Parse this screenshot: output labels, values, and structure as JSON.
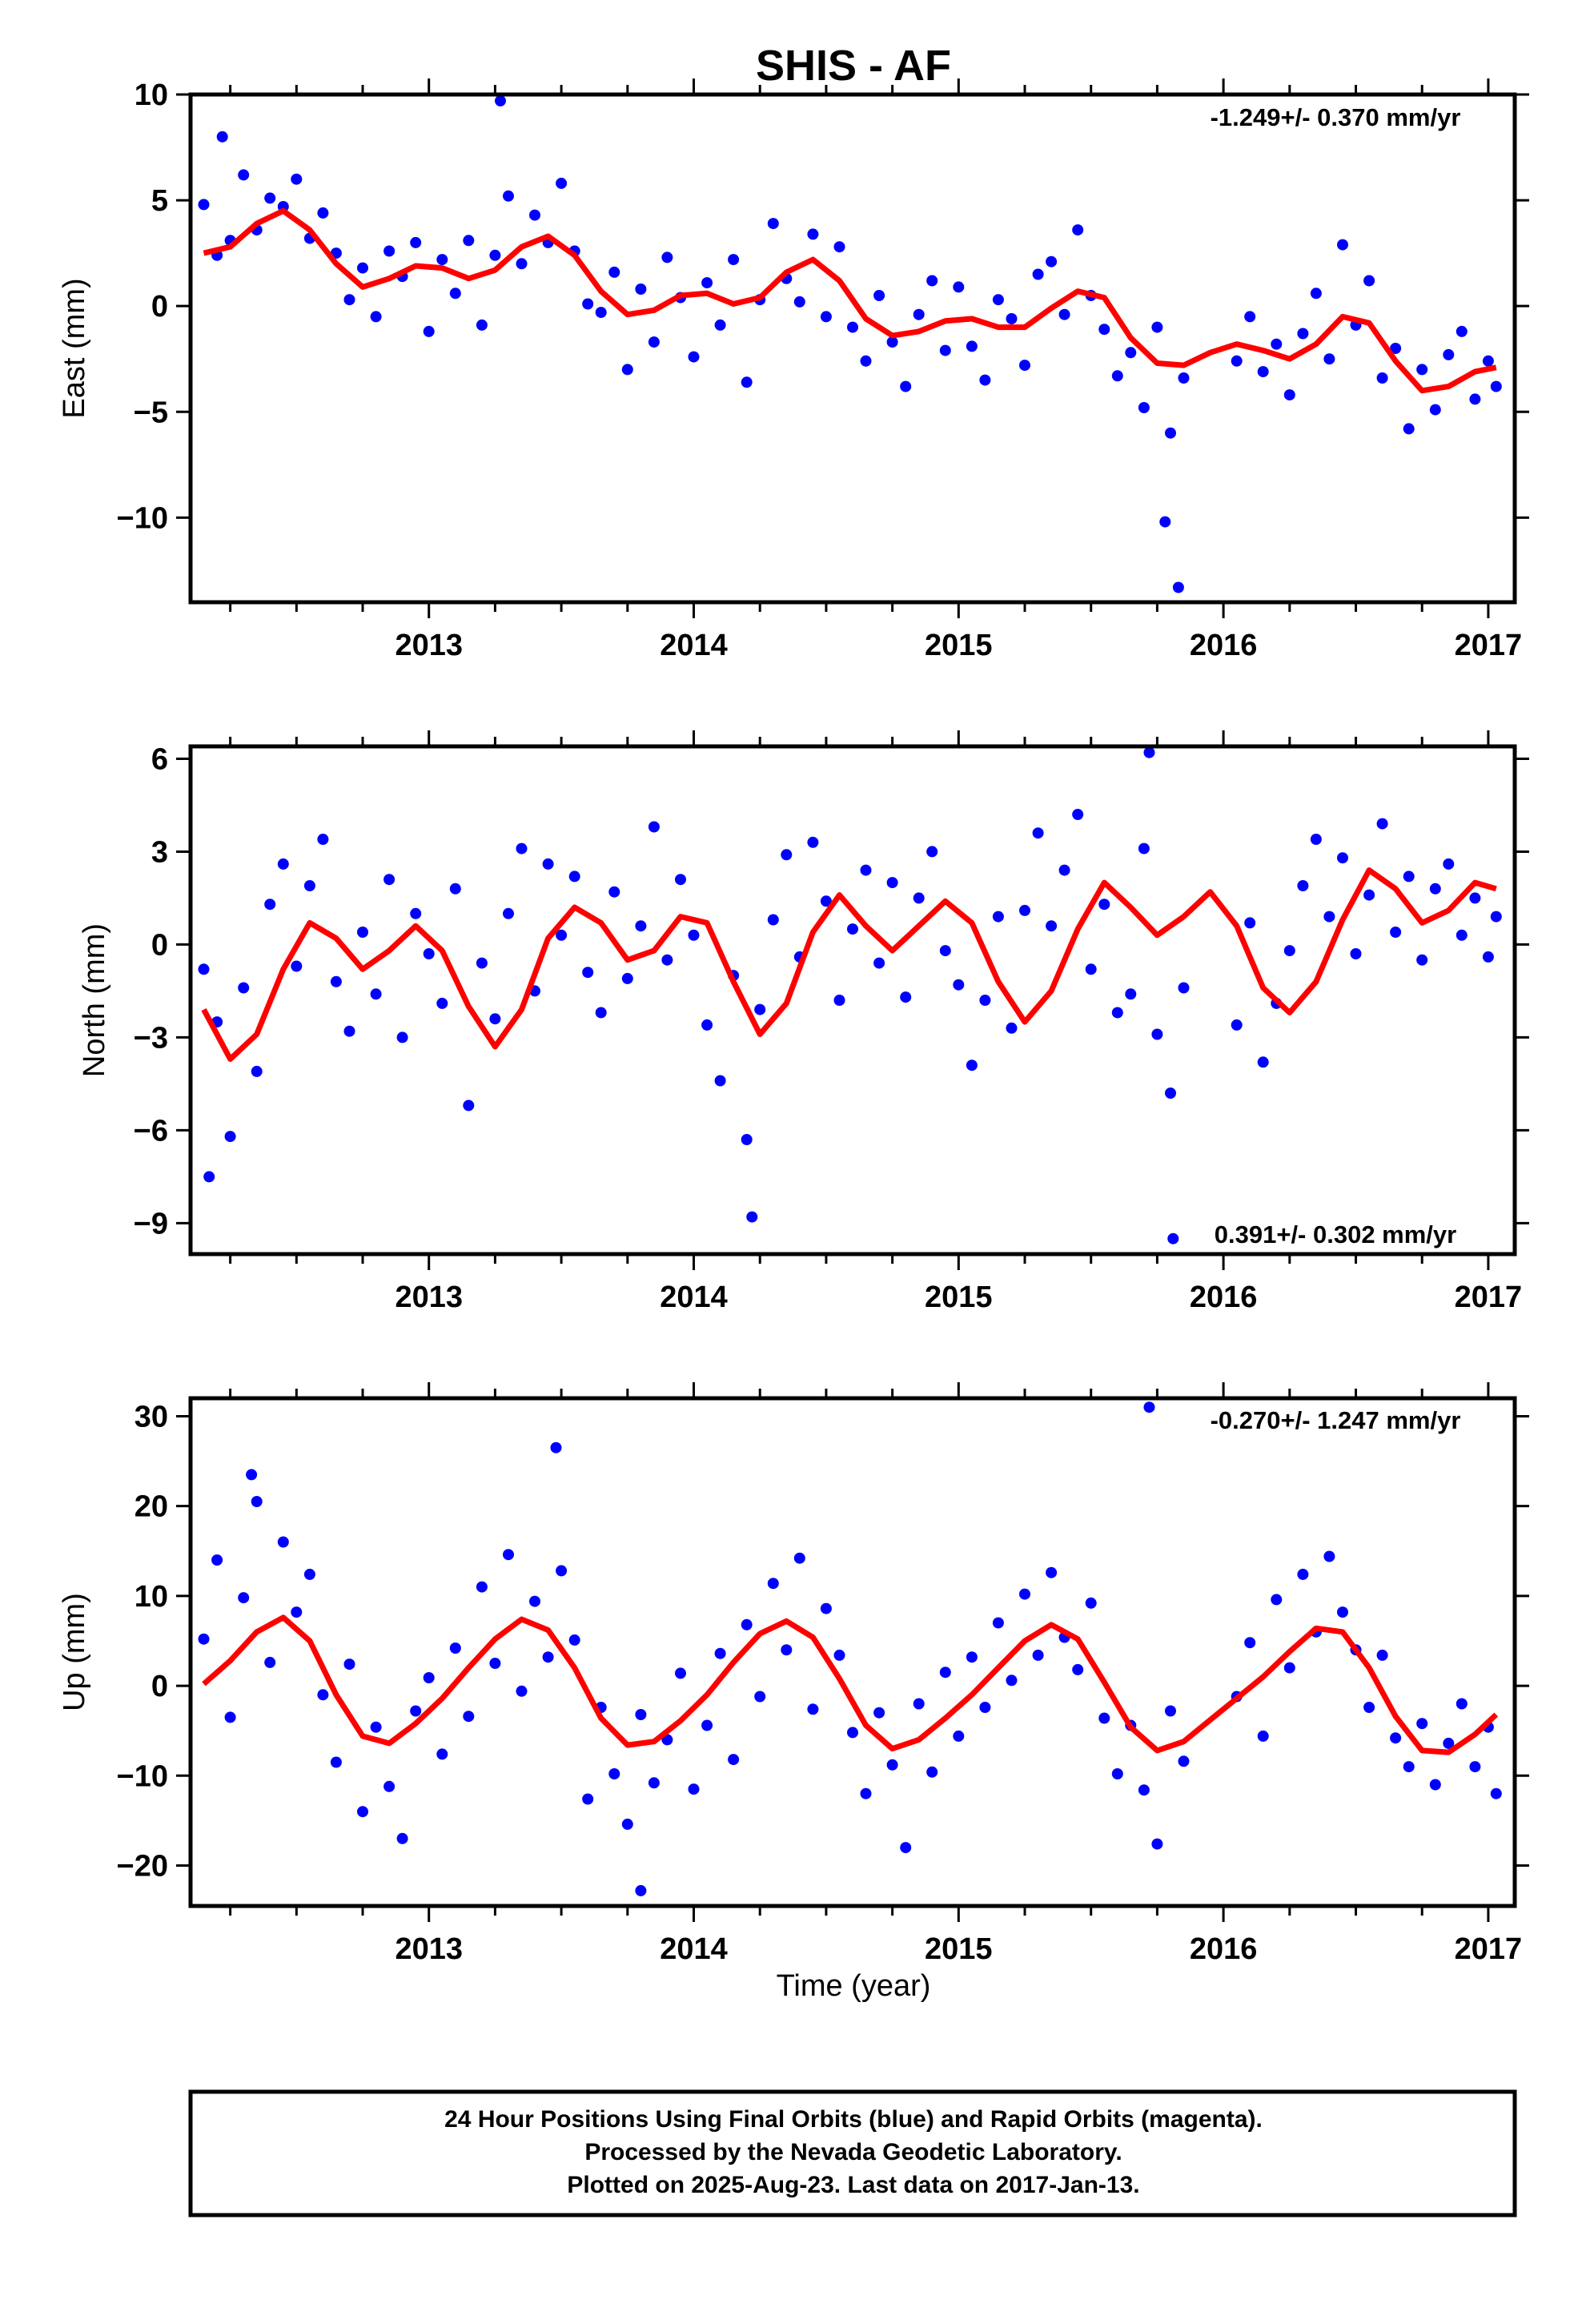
{
  "figure": {
    "title": "SHIS - AF",
    "xlabel": "Time (year)",
    "footer": [
      "24 Hour Positions Using Final Orbits (blue) and Rapid Orbits (magenta).",
      "Processed by the Nevada Geodetic Laboratory.",
      "Plotted on 2025-Aug-23. Last data on 2017-Jan-13."
    ],
    "colors": {
      "points": "#0000ff",
      "fit": "#ff0000",
      "frame": "#000000"
    }
  },
  "chart_data": [
    {
      "type": "scatter",
      "ylabel": "East (mm)",
      "rate": "-1.249+/- 0.370 mm/yr",
      "xlim": [
        2012.1,
        2017.1
      ],
      "ylim": [
        -14,
        10
      ],
      "xticks": [
        2013,
        2014,
        2015,
        2016,
        2017
      ],
      "yticks": [
        -10,
        -5,
        0,
        5,
        10
      ],
      "ytick_labels": [
        "−10",
        "−5",
        "0",
        "5",
        "10"
      ],
      "fit": {
        "x": [
          2012.15,
          2012.25,
          2012.35,
          2012.45,
          2012.55,
          2012.65,
          2012.75,
          2012.85,
          2012.95,
          2013.05,
          2013.15,
          2013.25,
          2013.35,
          2013.45,
          2013.55,
          2013.65,
          2013.75,
          2013.85,
          2013.95,
          2014.05,
          2014.15,
          2014.25,
          2014.35,
          2014.45,
          2014.55,
          2014.65,
          2014.75,
          2014.85,
          2014.95,
          2015.05,
          2015.15,
          2015.25,
          2015.35,
          2015.45,
          2015.55,
          2015.65,
          2015.75,
          2015.85,
          2015.95,
          2016.05,
          2016.15,
          2016.25,
          2016.35,
          2016.45,
          2016.55,
          2016.65,
          2016.75,
          2016.85,
          2016.95,
          2017.03
        ],
        "y": [
          2.5,
          2.8,
          3.9,
          4.5,
          3.6,
          2.0,
          0.9,
          1.3,
          1.9,
          1.8,
          1.3,
          1.7,
          2.8,
          3.3,
          2.4,
          0.7,
          -0.4,
          -0.2,
          0.5,
          0.6,
          0.1,
          0.4,
          1.6,
          2.2,
          1.2,
          -0.6,
          -1.4,
          -1.2,
          -0.7,
          -0.6,
          -1.0,
          -1.0,
          -0.1,
          0.7,
          0.4,
          -1.5,
          -2.7,
          -2.8,
          -2.2,
          -1.8,
          -2.1,
          -2.5,
          -1.8,
          -0.5,
          -0.8,
          -2.6,
          -4.0,
          -3.8,
          -3.1,
          -2.9
        ]
      },
      "points": {
        "x": [
          2012.15,
          2012.2,
          2012.25,
          2012.3,
          2012.35,
          2012.4,
          2012.45,
          2012.5,
          2012.55,
          2012.6,
          2012.65,
          2012.7,
          2012.75,
          2012.8,
          2012.85,
          2012.9,
          2012.95,
          2013.0,
          2013.05,
          2013.1,
          2013.15,
          2013.2,
          2013.25,
          2013.3,
          2013.35,
          2013.4,
          2013.45,
          2013.5,
          2013.55,
          2013.6,
          2013.65,
          2013.7,
          2013.75,
          2013.8,
          2013.85,
          2013.9,
          2013.95,
          2014.0,
          2014.05,
          2014.1,
          2014.15,
          2014.2,
          2014.25,
          2014.3,
          2014.35,
          2014.4,
          2014.45,
          2014.5,
          2014.55,
          2014.6,
          2014.65,
          2014.7,
          2014.75,
          2014.8,
          2014.85,
          2014.9,
          2014.95,
          2015.0,
          2015.05,
          2015.1,
          2015.15,
          2015.2,
          2015.25,
          2015.3,
          2015.35,
          2015.4,
          2015.45,
          2015.5,
          2015.55,
          2015.6,
          2015.65,
          2015.7,
          2015.75,
          2015.8,
          2015.85,
          2016.05,
          2016.1,
          2016.15,
          2016.2,
          2016.25,
          2016.3,
          2016.35,
          2016.4,
          2016.45,
          2016.5,
          2016.55,
          2016.6,
          2016.65,
          2016.7,
          2016.75,
          2016.8,
          2016.85,
          2016.9,
          2016.95,
          2017.0,
          2017.03,
          2012.22,
          2013.27,
          2015.78,
          2015.83
        ],
        "y": [
          4.8,
          2.4,
          3.1,
          6.2,
          3.6,
          5.1,
          4.7,
          6.0,
          3.2,
          4.4,
          2.5,
          0.3,
          1.8,
          -0.5,
          2.6,
          1.4,
          3.0,
          -1.2,
          2.2,
          0.6,
          3.1,
          -0.9,
          2.4,
          5.2,
          2.0,
          4.3,
          3.0,
          5.8,
          2.6,
          0.1,
          -0.3,
          1.6,
          -3.0,
          0.8,
          -1.7,
          2.3,
          0.4,
          -2.4,
          1.1,
          -0.9,
          2.2,
          -3.6,
          0.3,
          3.9,
          1.3,
          0.2,
          3.4,
          -0.5,
          2.8,
          -1.0,
          -2.6,
          0.5,
          -1.7,
          -3.8,
          -0.4,
          1.2,
          -2.1,
          0.9,
          -1.9,
          -3.5,
          0.3,
          -0.6,
          -2.8,
          1.5,
          2.1,
          -0.4,
          3.6,
          0.5,
          -1.1,
          -3.3,
          -2.2,
          -4.8,
          -1.0,
          -6.0,
          -3.4,
          -2.6,
          -0.5,
          -3.1,
          -1.8,
          -4.2,
          -1.3,
          0.6,
          -2.5,
          2.9,
          -0.9,
          1.2,
          -3.4,
          -2.0,
          -5.8,
          -3.0,
          -4.9,
          -2.3,
          -1.2,
          -4.4,
          -2.6,
          -3.8,
          8.0,
          9.7,
          -10.2,
          -13.3
        ]
      }
    },
    {
      "type": "scatter",
      "ylabel": "North (mm)",
      "rate": "0.391+/- 0.302 mm/yr",
      "xlim": [
        2012.1,
        2017.1
      ],
      "ylim": [
        -10,
        6.4
      ],
      "xticks": [
        2013,
        2014,
        2015,
        2016,
        2017
      ],
      "yticks": [
        -9,
        -6,
        -3,
        0,
        3,
        6
      ],
      "ytick_labels": [
        "−9",
        "−6",
        "−3",
        "0",
        "3",
        "6"
      ],
      "fit": {
        "x": [
          2012.15,
          2012.25,
          2012.35,
          2012.45,
          2012.55,
          2012.65,
          2012.75,
          2012.85,
          2012.95,
          2013.05,
          2013.15,
          2013.25,
          2013.35,
          2013.45,
          2013.55,
          2013.65,
          2013.75,
          2013.85,
          2013.95,
          2014.05,
          2014.15,
          2014.25,
          2014.35,
          2014.45,
          2014.55,
          2014.65,
          2014.75,
          2014.85,
          2014.95,
          2015.05,
          2015.15,
          2015.25,
          2015.35,
          2015.45,
          2015.55,
          2015.65,
          2015.75,
          2015.85,
          2015.95,
          2016.05,
          2016.15,
          2016.25,
          2016.35,
          2016.45,
          2016.55,
          2016.65,
          2016.75,
          2016.85,
          2016.95,
          2017.03
        ],
        "y": [
          -2.1,
          -3.7,
          -2.9,
          -0.8,
          0.7,
          0.2,
          -0.8,
          -0.2,
          0.6,
          -0.2,
          -2.0,
          -3.3,
          -2.1,
          0.2,
          1.2,
          0.7,
          -0.5,
          -0.2,
          0.9,
          0.7,
          -1.2,
          -2.9,
          -1.9,
          0.4,
          1.6,
          0.6,
          -0.2,
          0.6,
          1.4,
          0.7,
          -1.2,
          -2.5,
          -1.5,
          0.5,
          2.0,
          1.2,
          0.3,
          0.9,
          1.7,
          0.6,
          -1.4,
          -2.2,
          -1.2,
          0.8,
          2.4,
          1.8,
          0.7,
          1.1,
          2.0,
          1.8
        ]
      },
      "points": {
        "x": [
          2012.15,
          2012.2,
          2012.25,
          2012.3,
          2012.35,
          2012.4,
          2012.45,
          2012.5,
          2012.55,
          2012.6,
          2012.65,
          2012.7,
          2012.75,
          2012.8,
          2012.85,
          2012.9,
          2012.95,
          2013.0,
          2013.05,
          2013.1,
          2013.15,
          2013.2,
          2013.25,
          2013.3,
          2013.35,
          2013.4,
          2013.45,
          2013.5,
          2013.55,
          2013.6,
          2013.65,
          2013.7,
          2013.75,
          2013.8,
          2013.85,
          2013.9,
          2013.95,
          2014.0,
          2014.05,
          2014.1,
          2014.15,
          2014.2,
          2014.25,
          2014.3,
          2014.35,
          2014.4,
          2014.45,
          2014.5,
          2014.55,
          2014.6,
          2014.65,
          2014.7,
          2014.75,
          2014.8,
          2014.85,
          2014.9,
          2014.95,
          2015.0,
          2015.05,
          2015.1,
          2015.15,
          2015.2,
          2015.25,
          2015.3,
          2015.35,
          2015.4,
          2015.45,
          2015.5,
          2015.55,
          2015.6,
          2015.65,
          2015.7,
          2015.75,
          2015.8,
          2015.85,
          2016.05,
          2016.1,
          2016.15,
          2016.2,
          2016.25,
          2016.3,
          2016.35,
          2016.4,
          2016.45,
          2016.5,
          2016.55,
          2016.6,
          2016.65,
          2016.7,
          2016.75,
          2016.8,
          2016.85,
          2016.9,
          2016.95,
          2017.0,
          2017.03,
          2012.17,
          2014.22,
          2015.72,
          2015.81
        ],
        "y": [
          -0.8,
          -2.5,
          -6.2,
          -1.4,
          -4.1,
          1.3,
          2.6,
          -0.7,
          1.9,
          3.4,
          -1.2,
          -2.8,
          0.4,
          -1.6,
          2.1,
          -3.0,
          1.0,
          -0.3,
          -1.9,
          1.8,
          -5.2,
          -0.6,
          -2.4,
          1.0,
          3.1,
          -1.5,
          2.6,
          0.3,
          2.2,
          -0.9,
          -2.2,
          1.7,
          -1.1,
          0.6,
          3.8,
          -0.5,
          2.1,
          0.3,
          -2.6,
          -4.4,
          -1.0,
          -6.3,
          -2.1,
          0.8,
          2.9,
          -0.4,
          3.3,
          1.4,
          -1.8,
          0.5,
          2.4,
          -0.6,
          2.0,
          -1.7,
          1.5,
          3.0,
          -0.2,
          -1.3,
          -3.9,
          -1.8,
          0.9,
          -2.7,
          1.1,
          3.6,
          0.6,
          2.4,
          4.2,
          -0.8,
          1.3,
          -2.2,
          -1.6,
          3.1,
          -2.9,
          -4.8,
          -1.4,
          -2.6,
          0.7,
          -3.8,
          -1.9,
          -0.2,
          1.9,
          3.4,
          0.9,
          2.8,
          -0.3,
          1.6,
          3.9,
          0.4,
          2.2,
          -0.5,
          1.8,
          2.6,
          0.3,
          1.5,
          -0.4,
          0.9,
          -7.5,
          -8.8,
          6.2,
          -9.5
        ]
      }
    },
    {
      "type": "scatter",
      "ylabel": "Up (mm)",
      "rate": "-0.270+/- 1.247 mm/yr",
      "xlim": [
        2012.1,
        2017.1
      ],
      "ylim": [
        -24.5,
        32
      ],
      "xticks": [
        2013,
        2014,
        2015,
        2016,
        2017
      ],
      "yticks": [
        -20,
        -10,
        0,
        10,
        20,
        30
      ],
      "ytick_labels": [
        "−20",
        "−10",
        "0",
        "10",
        "20",
        "30"
      ],
      "fit": {
        "x": [
          2012.15,
          2012.25,
          2012.35,
          2012.45,
          2012.55,
          2012.65,
          2012.75,
          2012.85,
          2012.95,
          2013.05,
          2013.15,
          2013.25,
          2013.35,
          2013.45,
          2013.55,
          2013.65,
          2013.75,
          2013.85,
          2013.95,
          2014.05,
          2014.15,
          2014.25,
          2014.35,
          2014.45,
          2014.55,
          2014.65,
          2014.75,
          2014.85,
          2014.95,
          2015.05,
          2015.15,
          2015.25,
          2015.35,
          2015.45,
          2015.55,
          2015.65,
          2015.75,
          2015.85,
          2015.95,
          2016.05,
          2016.15,
          2016.25,
          2016.35,
          2016.45,
          2016.55,
          2016.65,
          2016.75,
          2016.85,
          2016.95,
          2017.03
        ],
        "y": [
          0.2,
          2.8,
          6.0,
          7.6,
          5.0,
          -1.0,
          -5.6,
          -6.4,
          -4.2,
          -1.4,
          2.0,
          5.2,
          7.4,
          6.2,
          2.0,
          -3.6,
          -6.6,
          -6.2,
          -3.9,
          -1.0,
          2.6,
          5.8,
          7.2,
          5.4,
          0.8,
          -4.4,
          -7.0,
          -6.0,
          -3.6,
          -1.0,
          2.0,
          5.0,
          6.8,
          5.2,
          0.4,
          -4.6,
          -7.2,
          -6.2,
          -3.8,
          -1.4,
          1.0,
          3.8,
          6.4,
          6.0,
          2.0,
          -3.4,
          -7.2,
          -7.4,
          -5.4,
          -3.2
        ]
      },
      "points": {
        "x": [
          2012.15,
          2012.2,
          2012.25,
          2012.3,
          2012.35,
          2012.4,
          2012.45,
          2012.5,
          2012.55,
          2012.6,
          2012.65,
          2012.7,
          2012.75,
          2012.8,
          2012.85,
          2012.9,
          2012.95,
          2013.0,
          2013.05,
          2013.1,
          2013.15,
          2013.2,
          2013.25,
          2013.3,
          2013.35,
          2013.4,
          2013.45,
          2013.5,
          2013.55,
          2013.6,
          2013.65,
          2013.7,
          2013.75,
          2013.8,
          2013.85,
          2013.9,
          2013.95,
          2014.0,
          2014.05,
          2014.1,
          2014.15,
          2014.2,
          2014.25,
          2014.3,
          2014.35,
          2014.4,
          2014.45,
          2014.5,
          2014.55,
          2014.6,
          2014.65,
          2014.7,
          2014.75,
          2014.8,
          2014.85,
          2014.9,
          2014.95,
          2015.0,
          2015.05,
          2015.1,
          2015.15,
          2015.2,
          2015.25,
          2015.3,
          2015.35,
          2015.4,
          2015.45,
          2015.5,
          2015.55,
          2015.6,
          2015.65,
          2015.7,
          2015.75,
          2015.8,
          2015.85,
          2016.05,
          2016.1,
          2016.15,
          2016.2,
          2016.25,
          2016.3,
          2016.35,
          2016.4,
          2016.45,
          2016.5,
          2016.55,
          2016.6,
          2016.65,
          2016.7,
          2016.75,
          2016.8,
          2016.85,
          2016.9,
          2016.95,
          2017.0,
          2017.03,
          2012.33,
          2013.48,
          2015.72,
          2013.8
        ],
        "y": [
          5.2,
          14.0,
          -3.5,
          9.8,
          20.5,
          2.6,
          16.0,
          8.2,
          12.4,
          -1.0,
          -8.5,
          2.4,
          -14.0,
          -4.6,
          -11.2,
          -17.0,
          -2.8,
          0.9,
          -7.6,
          4.2,
          -3.4,
          11.0,
          2.5,
          14.6,
          -0.6,
          9.4,
          3.2,
          12.8,
          5.1,
          -12.6,
          -2.4,
          -9.8,
          -15.4,
          -3.2,
          -10.8,
          -6.0,
          1.4,
          -11.5,
          -4.4,
          3.6,
          -8.2,
          6.8,
          -1.2,
          11.4,
          4.0,
          14.2,
          -2.6,
          8.6,
          3.4,
          -5.2,
          -12.0,
          -3.0,
          -8.8,
          -18.0,
          -2.0,
          -9.6,
          1.5,
          -5.6,
          3.2,
          -2.4,
          7.0,
          0.6,
          10.2,
          3.4,
          12.6,
          5.4,
          1.8,
          9.2,
          -3.6,
          -9.8,
          -4.4,
          -11.6,
          -17.6,
          -2.8,
          -8.4,
          -1.2,
          4.8,
          -5.6,
          9.6,
          2.0,
          12.4,
          6.0,
          14.4,
          8.2,
          4.0,
          -2.4,
          3.4,
          -5.8,
          -9.0,
          -4.2,
          -11.0,
          -6.4,
          -2.0,
          -9.0,
          -4.6,
          -12.0,
          23.5,
          26.5,
          31.0,
          -22.8
        ]
      }
    }
  ]
}
